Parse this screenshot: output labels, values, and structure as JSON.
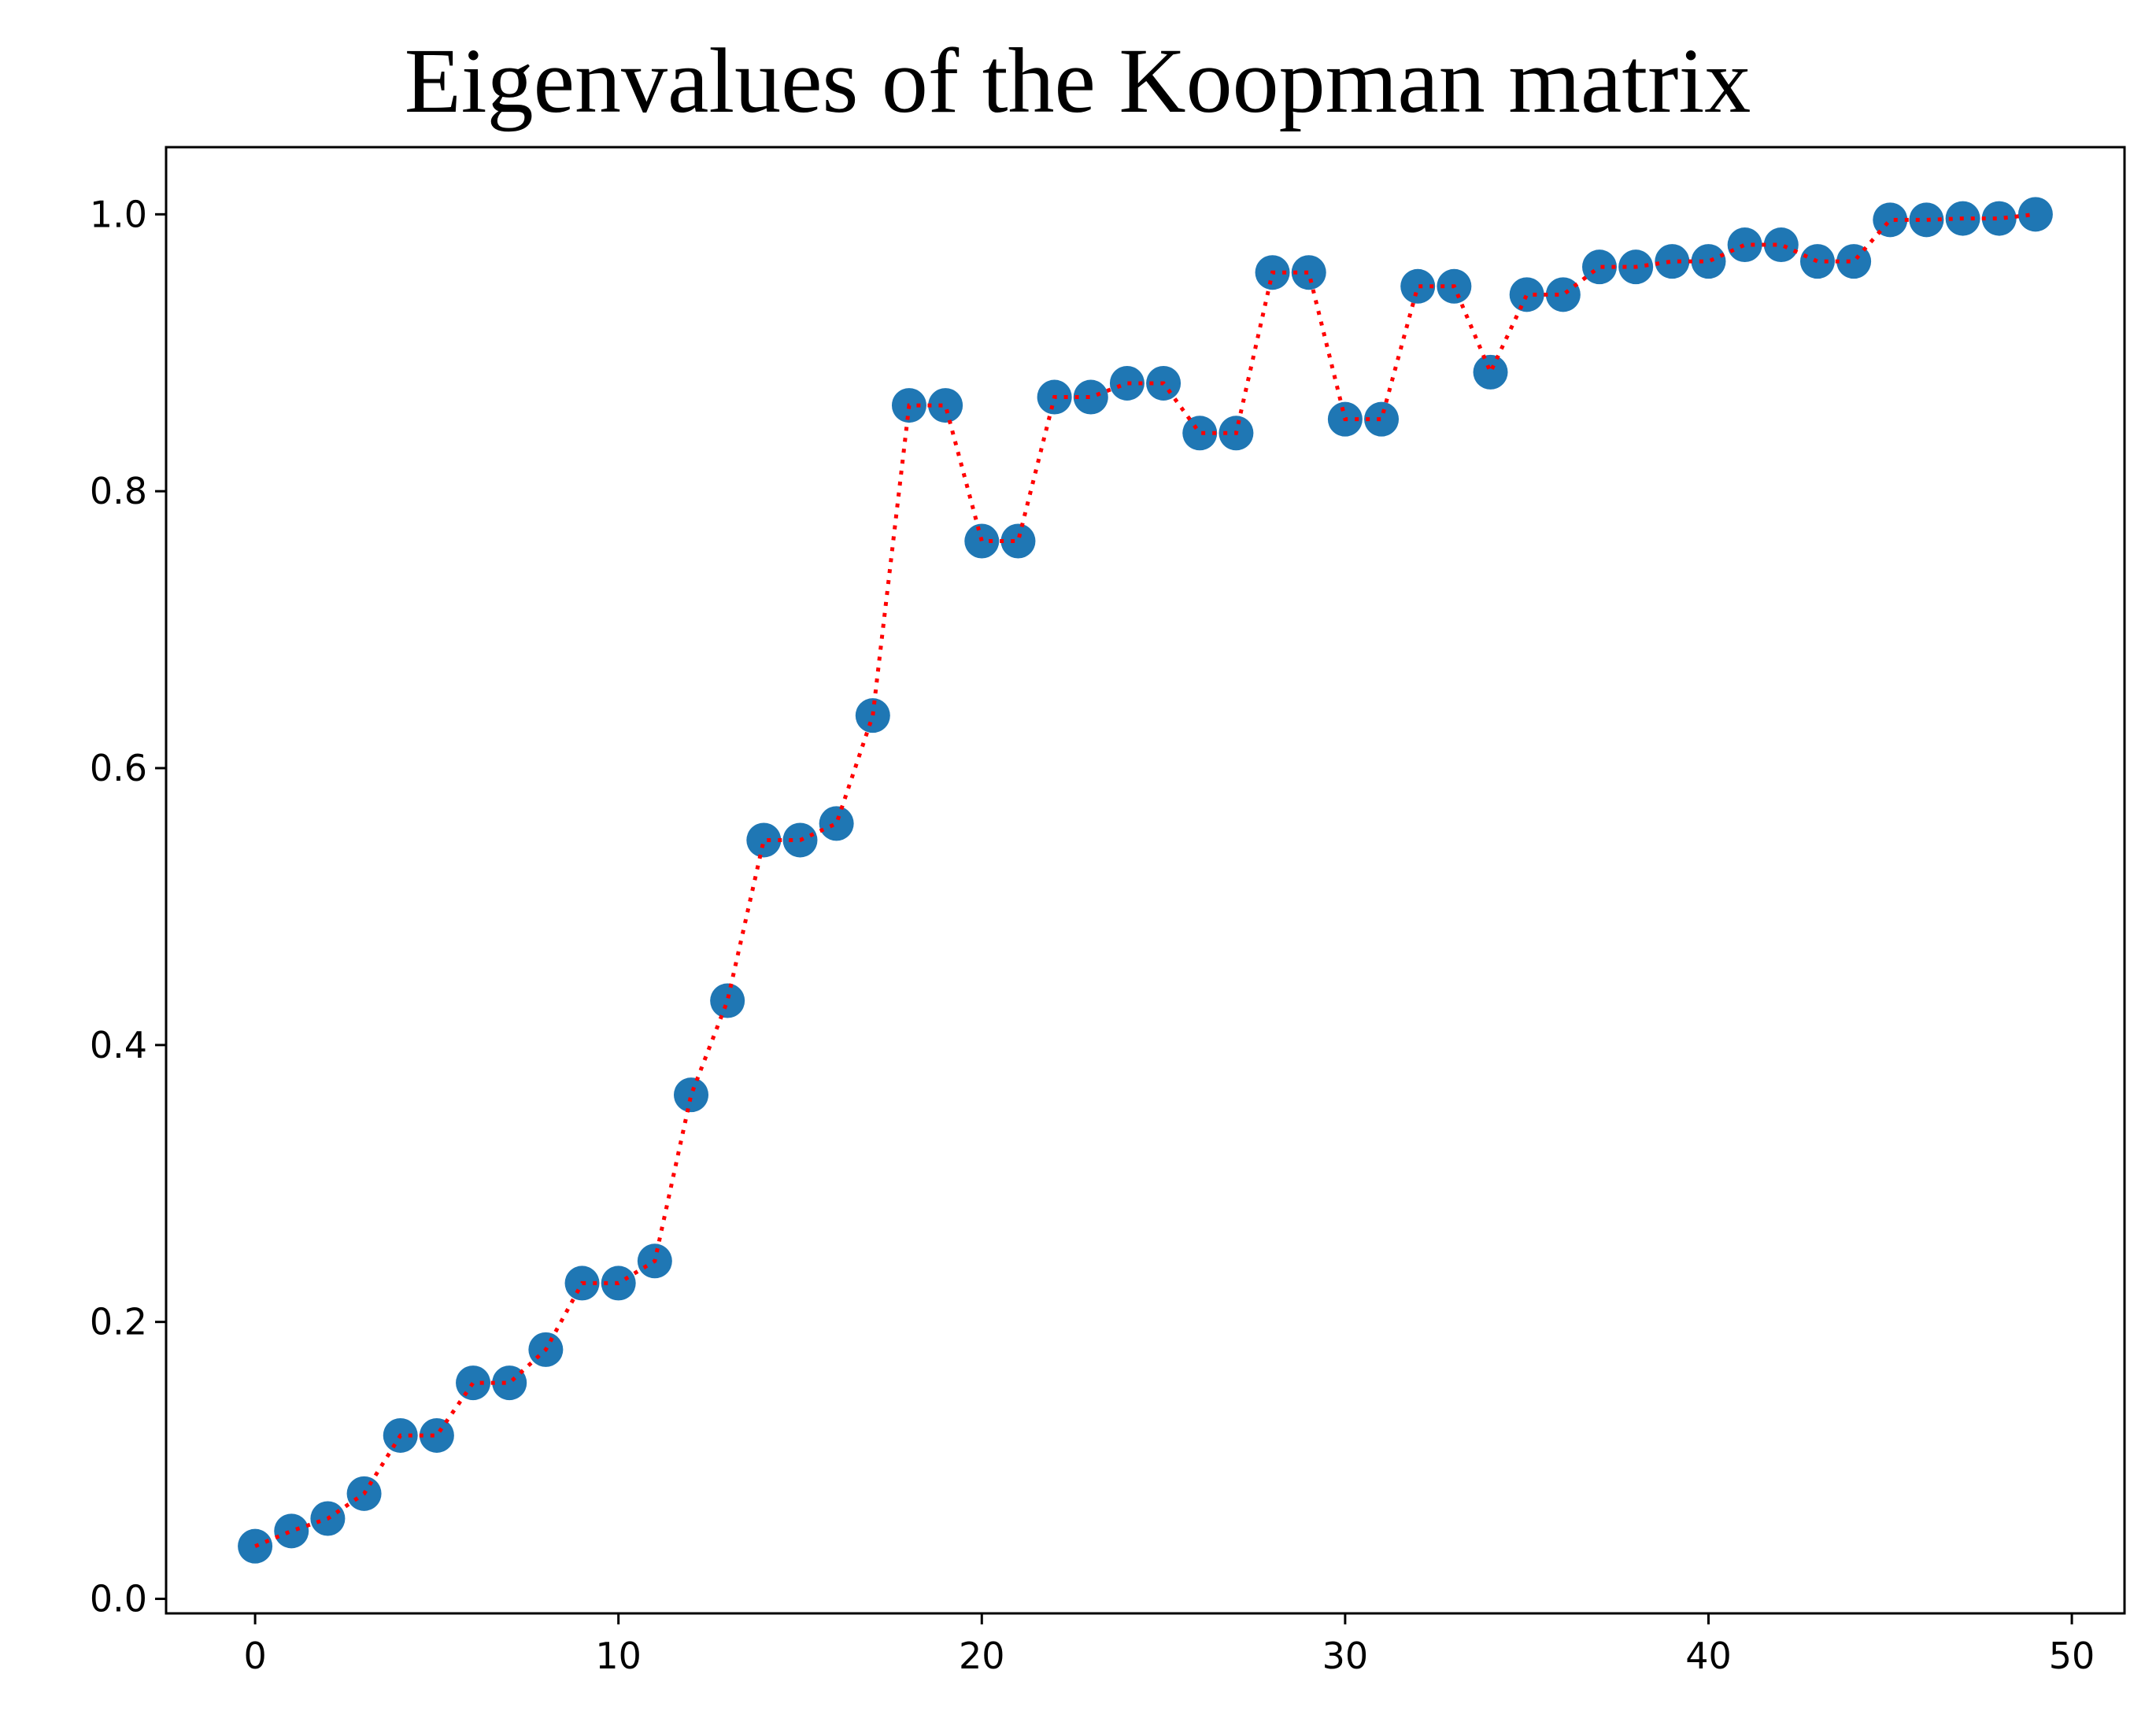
{
  "chart_data": {
    "type": "scatter",
    "title": "Eigenvalues of the Koopman matrix",
    "xlabel": "",
    "ylabel": "",
    "xlim": [
      -2.45,
      51.45
    ],
    "ylim": [
      -0.0105,
      1.0485
    ],
    "xticks": [
      0,
      10,
      20,
      30,
      40,
      50
    ],
    "yticks": [
      0.0,
      0.2,
      0.4,
      0.6,
      0.8,
      1.0
    ],
    "xtick_labels": [
      "0",
      "10",
      "20",
      "30",
      "40",
      "50"
    ],
    "ytick_labels": [
      "0.0",
      "0.2",
      "0.4",
      "0.6",
      "0.8",
      "1.0"
    ],
    "grid": false,
    "legend": "none",
    "series": [
      {
        "marker_color": "#1f77b4",
        "line_color": "#ff0000",
        "line_style": "dotted",
        "x": [
          0,
          1,
          2,
          3,
          4,
          5,
          6,
          7,
          8,
          9,
          10,
          11,
          12,
          13,
          14,
          15,
          16,
          17,
          18,
          19,
          20,
          21,
          22,
          23,
          24,
          25,
          26,
          27,
          28,
          29,
          30,
          31,
          32,
          33,
          34,
          35,
          36,
          37,
          38,
          39,
          40,
          41,
          42,
          43,
          44,
          45,
          46,
          47,
          48,
          49
        ],
        "y": [
          0.038,
          0.049,
          0.058,
          0.076,
          0.118,
          0.118,
          0.156,
          0.156,
          0.18,
          0.228,
          0.228,
          0.244,
          0.364,
          0.432,
          0.548,
          0.548,
          0.56,
          0.638,
          0.862,
          0.862,
          0.764,
          0.764,
          0.868,
          0.868,
          0.878,
          0.878,
          0.842,
          0.842,
          0.958,
          0.958,
          0.852,
          0.852,
          0.948,
          0.948,
          0.886,
          0.942,
          0.942,
          0.962,
          0.962,
          0.966,
          0.966,
          0.978,
          0.978,
          0.966,
          0.966,
          0.996,
          0.996,
          0.997,
          0.997,
          1.0
        ]
      }
    ]
  }
}
